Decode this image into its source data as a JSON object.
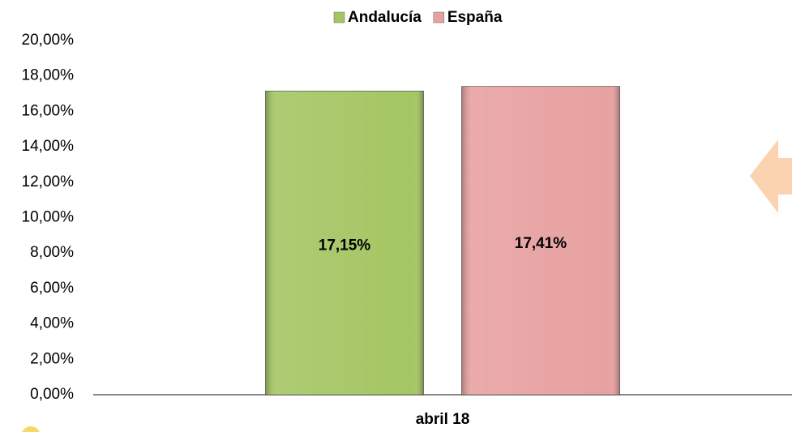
{
  "chart_data": {
    "type": "bar",
    "categories": [
      "abril 18"
    ],
    "series": [
      {
        "name": "Andalucía",
        "color": "#a5c663",
        "values": [
          17.15
        ],
        "value_labels": [
          "17,15%"
        ]
      },
      {
        "name": "España",
        "color": "#e8a1a1",
        "values": [
          17.41
        ],
        "value_labels": [
          "17,41%"
        ]
      }
    ],
    "ylim": [
      0,
      20
    ],
    "yticks": [
      {
        "value": 0,
        "label": "0,00%"
      },
      {
        "value": 2,
        "label": "2,00%"
      },
      {
        "value": 4,
        "label": "4,00%"
      },
      {
        "value": 6,
        "label": "6,00%"
      },
      {
        "value": 8,
        "label": "8,00%"
      },
      {
        "value": 10,
        "label": "10,00%"
      },
      {
        "value": 12,
        "label": "12,00%"
      },
      {
        "value": 14,
        "label": "14,00%"
      },
      {
        "value": 16,
        "label": "16,00%"
      },
      {
        "value": 18,
        "label": "18,00%"
      },
      {
        "value": 20,
        "label": "20,00%"
      }
    ],
    "legend": "top",
    "grid": false
  }
}
